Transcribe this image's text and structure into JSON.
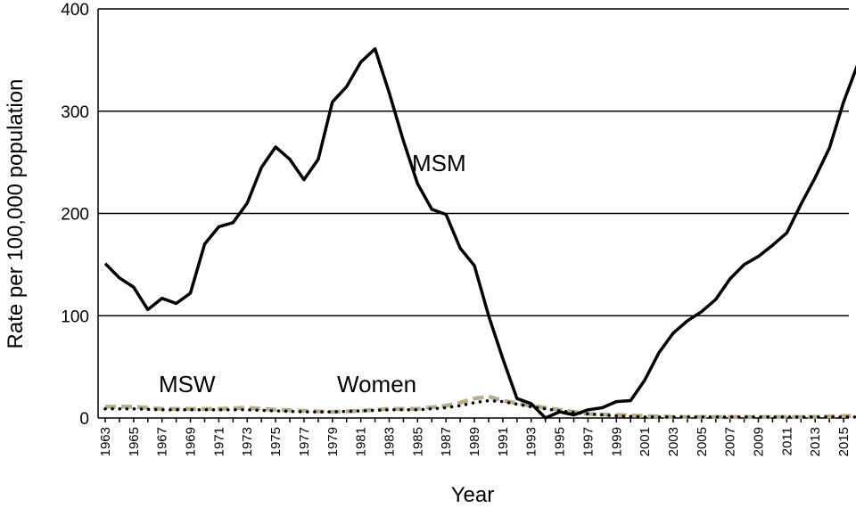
{
  "chart_data": {
    "type": "line",
    "title": "",
    "xlabel": "Year",
    "ylabel": "Rate per 100,000 population",
    "xlim": [
      1963,
      2016
    ],
    "ylim": [
      0,
      400
    ],
    "yticks": [
      0,
      100,
      200,
      300,
      400
    ],
    "xticks": [
      1963,
      1965,
      1967,
      1969,
      1971,
      1973,
      1975,
      1977,
      1979,
      1981,
      1983,
      1985,
      1987,
      1989,
      1991,
      1993,
      1995,
      1997,
      1999,
      2001,
      2003,
      2005,
      2007,
      2009,
      2011,
      2013,
      2015
    ],
    "grid": "horizontal",
    "legend": "inline labels",
    "series": [
      {
        "name": "MSM",
        "style": "solid",
        "color": "#000000",
        "points": [
          [
            1963,
            151
          ],
          [
            1964,
            137
          ],
          [
            1965,
            128
          ],
          [
            1966,
            106
          ],
          [
            1967,
            117
          ],
          [
            1968,
            112
          ],
          [
            1969,
            122
          ],
          [
            1970,
            170
          ],
          [
            1971,
            187
          ],
          [
            1972,
            191
          ],
          [
            1973,
            210
          ],
          [
            1974,
            245
          ],
          [
            1975,
            265
          ],
          [
            1976,
            253
          ],
          [
            1977,
            233
          ],
          [
            1978,
            253
          ],
          [
            1979,
            309
          ],
          [
            1980,
            324
          ],
          [
            1981,
            348
          ],
          [
            1982,
            361
          ],
          [
            1983,
            318
          ],
          [
            1984,
            271
          ],
          [
            1985,
            229
          ],
          [
            1986,
            204
          ],
          [
            1987,
            199
          ],
          [
            1988,
            166
          ],
          [
            1989,
            149
          ],
          [
            1990,
            100
          ],
          [
            1991,
            58
          ],
          [
            1992,
            19
          ],
          [
            1993,
            14
          ],
          [
            1994,
            0
          ],
          [
            1995,
            6
          ],
          [
            1996,
            3
          ],
          [
            1997,
            8
          ],
          [
            1998,
            10
          ],
          [
            1999,
            16
          ],
          [
            2000,
            17
          ],
          [
            2001,
            37
          ],
          [
            2002,
            64
          ],
          [
            2003,
            83
          ],
          [
            2004,
            95
          ],
          [
            2005,
            104
          ],
          [
            2006,
            116
          ],
          [
            2007,
            136
          ],
          [
            2008,
            150
          ],
          [
            2009,
            158
          ],
          [
            2010,
            169
          ],
          [
            2011,
            181
          ],
          [
            2012,
            209
          ],
          [
            2013,
            235
          ],
          [
            2014,
            264
          ],
          [
            2015,
            309
          ],
          [
            2016,
            346
          ]
        ]
      },
      {
        "name": "MSW",
        "style": "dashed",
        "color": "#b7ad88",
        "points": [
          [
            1963,
            11
          ],
          [
            1965,
            11
          ],
          [
            1967,
            9
          ],
          [
            1969,
            9
          ],
          [
            1971,
            9
          ],
          [
            1973,
            10
          ],
          [
            1975,
            8
          ],
          [
            1977,
            7
          ],
          [
            1979,
            6
          ],
          [
            1981,
            7
          ],
          [
            1983,
            9
          ],
          [
            1985,
            9
          ],
          [
            1987,
            12
          ],
          [
            1988,
            15
          ],
          [
            1989,
            19
          ],
          [
            1990,
            21
          ],
          [
            1991,
            17
          ],
          [
            1993,
            12
          ],
          [
            1995,
            8
          ],
          [
            1997,
            4
          ],
          [
            1999,
            3
          ],
          [
            2001,
            2
          ],
          [
            2003,
            1
          ],
          [
            2005,
            1
          ],
          [
            2007,
            1
          ],
          [
            2009,
            1
          ],
          [
            2011,
            1
          ],
          [
            2013,
            1
          ],
          [
            2015,
            2
          ],
          [
            2016,
            2
          ]
        ]
      },
      {
        "name": "Women",
        "style": "dotted",
        "color": "#000000",
        "points": [
          [
            1963,
            9
          ],
          [
            1965,
            9
          ],
          [
            1967,
            8
          ],
          [
            1969,
            8
          ],
          [
            1971,
            8
          ],
          [
            1973,
            8
          ],
          [
            1975,
            7
          ],
          [
            1977,
            6
          ],
          [
            1979,
            6
          ],
          [
            1981,
            7
          ],
          [
            1983,
            8
          ],
          [
            1985,
            8
          ],
          [
            1987,
            10
          ],
          [
            1988,
            12
          ],
          [
            1989,
            15
          ],
          [
            1990,
            17
          ],
          [
            1991,
            16
          ],
          [
            1993,
            11
          ],
          [
            1995,
            7
          ],
          [
            1997,
            4
          ],
          [
            1999,
            2
          ],
          [
            2001,
            1
          ],
          [
            2003,
            1
          ],
          [
            2005,
            1
          ],
          [
            2007,
            1
          ],
          [
            2009,
            1
          ],
          [
            2011,
            1
          ],
          [
            2013,
            1
          ],
          [
            2015,
            1
          ],
          [
            2016,
            1
          ]
        ]
      }
    ],
    "labels": {
      "msm": "MSM",
      "msw": "MSW",
      "women": "Women"
    }
  }
}
